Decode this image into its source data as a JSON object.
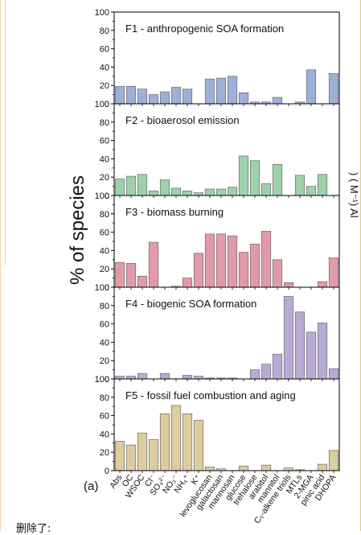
{
  "chart_data": {
    "type": "bar",
    "panel_label": "(a)",
    "ylabel": "% of species",
    "ylim": [
      0,
      100
    ],
    "yticks": [
      0,
      20,
      40,
      60,
      80,
      100
    ],
    "categories": [
      "Abs",
      "OC",
      "WSOC",
      "Cl⁻",
      "SO₄²⁻",
      "NO₃⁻",
      "NH₄⁺",
      "K⁺",
      "levoglucosan",
      "galactosan",
      "mannosan",
      "glucose",
      "trehalose",
      "arabitol",
      "mannitol",
      "C₅-alkene triols",
      "MTLs",
      "2-MGA",
      "pinic acid",
      "DHOPA"
    ],
    "panels": [
      {
        "name": "F1 - anthropogenic SOA formation",
        "color": "#9db1d8",
        "values": [
          19,
          19,
          16,
          10,
          13,
          18,
          16,
          0,
          27,
          28,
          30,
          12,
          2,
          2,
          7,
          0,
          2,
          37,
          0,
          33
        ]
      },
      {
        "name": "F2 - bioaerosol emission",
        "color": "#9fd0ac",
        "values": [
          18,
          21,
          23,
          5,
          17,
          8,
          5,
          3,
          7,
          7,
          9,
          43,
          38,
          13,
          34,
          0,
          22,
          10,
          23,
          0
        ]
      },
      {
        "name": "F3 - biomass burning",
        "color": "#e29aa9",
        "values": [
          27,
          26,
          12,
          49,
          0,
          1,
          10,
          37,
          58,
          58,
          56,
          38,
          47,
          61,
          30,
          5,
          0,
          0,
          6,
          32
        ]
      },
      {
        "name": "F4 - biogenic SOA formation",
        "color": "#b7abd6",
        "values": [
          3,
          3,
          6,
          0,
          6,
          0,
          4,
          3,
          1,
          1,
          1,
          0,
          10,
          16,
          27,
          90,
          73,
          51,
          61,
          11
        ]
      },
      {
        "name": "F5 - fossil fuel combustion and aging",
        "color": "#ddcc9e",
        "values": [
          32,
          28,
          41,
          34,
          62,
          71,
          62,
          55,
          4,
          2,
          0,
          5,
          0,
          6,
          0,
          3,
          1,
          0,
          7,
          22
        ]
      }
    ]
  },
  "right_edge_text": ") ( M⁻¹)  Al",
  "bottom_text": "删除了:"
}
